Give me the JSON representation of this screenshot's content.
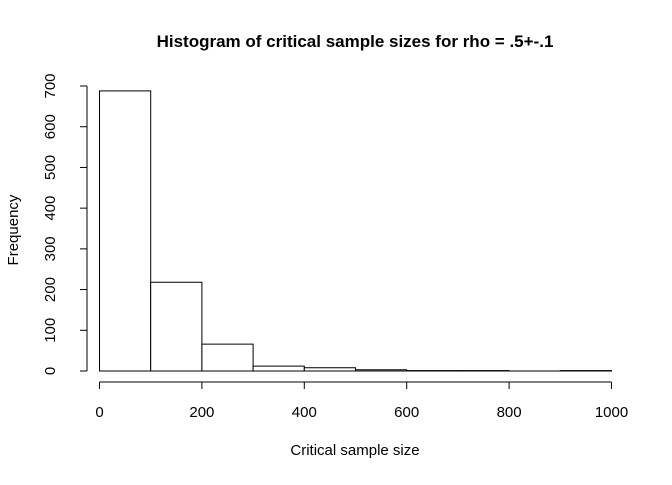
{
  "chart_data": {
    "type": "bar",
    "title": "Histogram of critical sample sizes for rho = .5+-.1",
    "xlabel": "Critical sample size",
    "ylabel": "Frequency",
    "bins": [
      {
        "from": 0,
        "to": 100,
        "count": 688
      },
      {
        "from": 100,
        "to": 200,
        "count": 218
      },
      {
        "from": 200,
        "to": 300,
        "count": 66
      },
      {
        "from": 300,
        "to": 400,
        "count": 12
      },
      {
        "from": 400,
        "to": 500,
        "count": 8
      },
      {
        "from": 500,
        "to": 600,
        "count": 3
      },
      {
        "from": 600,
        "to": 700,
        "count": 1
      },
      {
        "from": 700,
        "to": 800,
        "count": 1
      },
      {
        "from": 800,
        "to": 900,
        "count": 0
      },
      {
        "from": 900,
        "to": 1000,
        "count": 1
      }
    ],
    "xlim": [
      0,
      1000
    ],
    "ylim": [
      0,
      700
    ],
    "x_ticks": [
      0,
      200,
      400,
      600,
      800,
      1000
    ],
    "y_ticks": [
      0,
      100,
      200,
      300,
      400,
      500,
      600,
      700
    ],
    "bar_fill": "#ffffff",
    "bar_stroke": "#000000",
    "grid": false,
    "legend": "none"
  }
}
